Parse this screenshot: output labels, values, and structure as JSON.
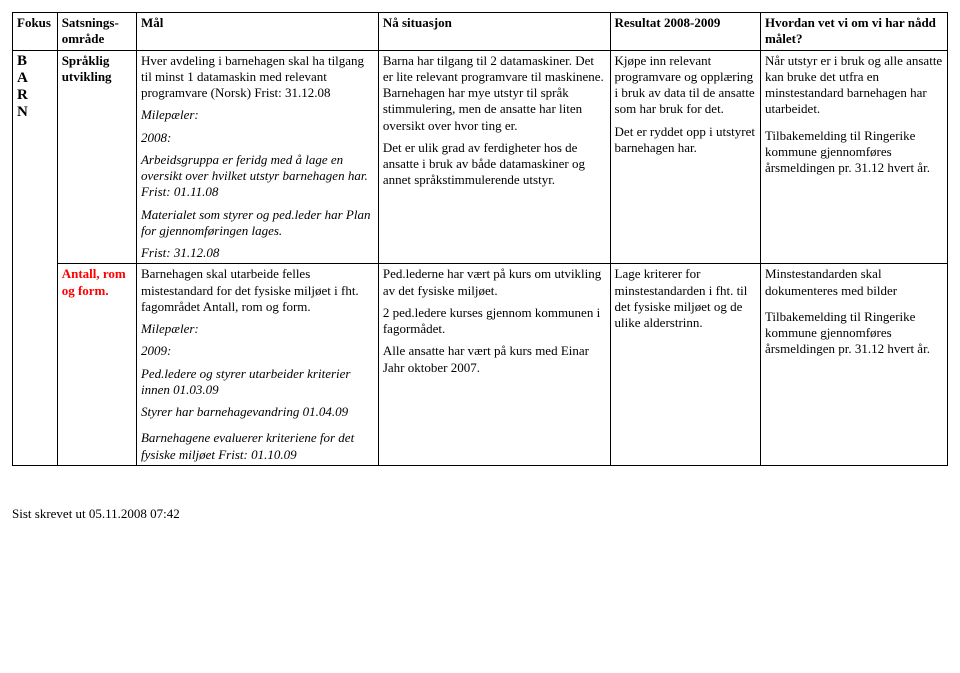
{
  "header": {
    "fokus": "Fokus",
    "omrade": "Satsnings-område",
    "mal": "Mål",
    "naa": "Nå situasjon",
    "res": "Resultat 2008-2009",
    "hv": "Hvordan vet vi om vi har nådd målet?"
  },
  "sideLabel": [
    "B",
    "A",
    "R",
    "N"
  ],
  "row1": {
    "omrade": "Språklig utvikling",
    "mal_p1": "Hver avdeling i barnehagen skal ha tilgang til minst 1 datamaskin med relevant programvare (Norsk) Frist: 31.12.08",
    "mal_mile_head": "Milepæler:",
    "mal_mile_year": "2008:",
    "mal_mile_text": "Arbeidsgruppa er feridg med å lage en oversikt over hvilket utstyr barnehagen har. Frist: 01.11.08",
    "mal_mile_text2": "Materialet som styrer og ped.leder har Plan for gjennomføringen lages.",
    "mal_mile_text3": "Frist: 31.12.08",
    "naa_p1": "Barna har tilgang til 2 datamaskiner. Det er lite relevant programvare til maskinene. Barnehagen har mye utstyr til språk stimmulering, men de ansatte har liten oversikt over hvor ting er.",
    "naa_p2": "Det er ulik grad av ferdigheter hos de ansatte i bruk av både datamaskiner og annet språkstimmulerende utstyr.",
    "res_p1": "Kjøpe inn relevant programvare og opplæring i bruk av data til de ansatte som har bruk for det.",
    "res_p2": "Det er ryddet opp i utstyret barnehagen har.",
    "hv_p1": "Når utstyr er i bruk og alle ansatte kan bruke det utfra en minstestandard barnehagen har utarbeidet.",
    "hv_p2": "Tilbakemelding til Ringerike kommune gjennomføres årsmeldingen pr. 31.12 hvert år."
  },
  "row2": {
    "omrade": "Antall, rom og form.",
    "mal_p1": "Barnehagen skal utarbeide felles mistestandard for det fysiske miljøet i fht. fagområdet Antall, rom og form.",
    "mal_mile_head": "Milepæler:",
    "mal_mile_year": "2009:",
    "mal_mile_l1": "Ped.ledere og styrer utarbeider kriterier innen 01.03.09",
    "mal_mile_l2": "Styrer har barnehagevandring 01.04.09",
    "mal_mile_l3": "Barnehagene evaluerer kriteriene for det fysiske miljøet Frist: 01.10.09",
    "naa_p1": "Ped.lederne har vært på kurs om utvikling av det fysiske miljøet.",
    "naa_p2": "2 ped.ledere kurses gjennom kommunen i fagormådet.",
    "naa_p3": "Alle ansatte har vært på kurs med Einar Jahr oktober 2007.",
    "res_p1": "Lage kriterer for minstestandarden i fht. til det fysiske miljøet og de ulike alderstrinn.",
    "hv_p1": "Minstestandarden skal dokumenteres med bilder",
    "hv_p2": "Tilbakemelding til Ringerike kommune gjennomføres årsmeldingen pr. 31.12 hvert år."
  },
  "footer": "Sist skrevet ut 05.11.2008 07:42"
}
